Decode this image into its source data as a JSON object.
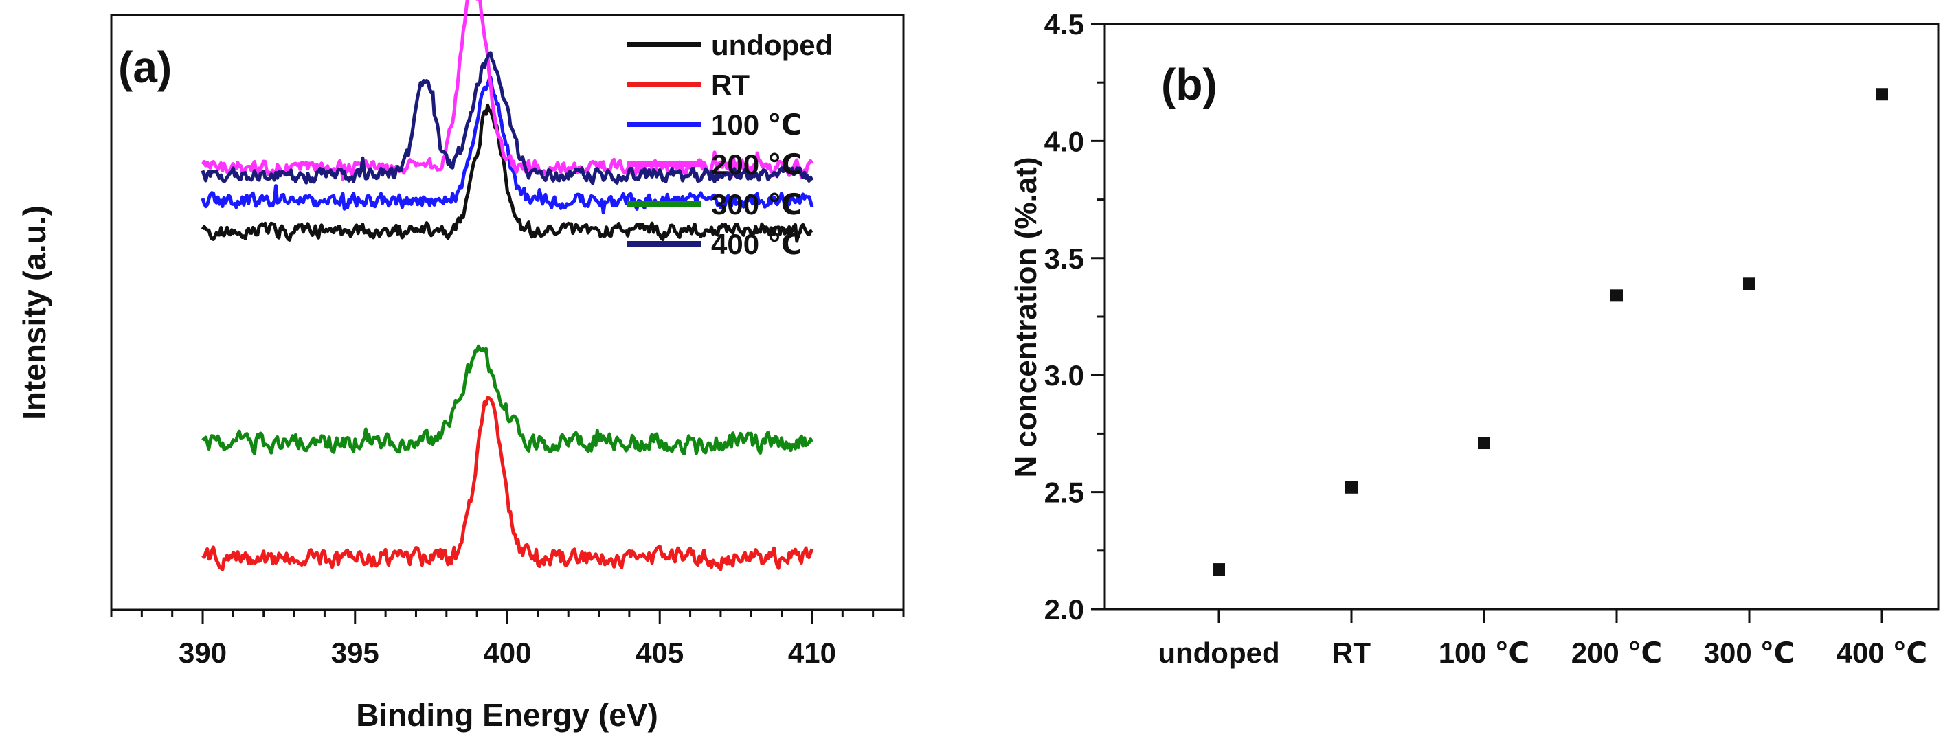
{
  "chart_data": [
    {
      "type": "line",
      "panel_label": "(a)",
      "xlabel": "Binding Energy (eV)",
      "ylabel": "Intensity (a.u.)",
      "xlim": [
        387,
        413
      ],
      "ylim": [
        0,
        8
      ],
      "xticks": [
        "390",
        "395",
        "400",
        "405",
        "410"
      ],
      "grid": false,
      "legend_position": "top-right",
      "peak_position": 399.3,
      "x_range": [
        390,
        410
      ],
      "series": [
        {
          "name": "undoped",
          "color": "#111111",
          "baseline": 5.1,
          "peak_height": 1.65,
          "peak_center": 399.4,
          "peak_width": 0.6,
          "noise": 0.08
        },
        {
          "name": "RT",
          "color": "#ee1c1c",
          "baseline": 0.7,
          "peak_height": 2.15,
          "peak_center": 399.4,
          "peak_width": 0.6,
          "noise": 0.1
        },
        {
          "name": "100 ℃",
          "color": "#1a1aff",
          "baseline": 5.5,
          "peak_height": 1.6,
          "peak_center": 399.4,
          "peak_width": 0.65,
          "noise": 0.08
        },
        {
          "name": "200 ℃",
          "color": "#ff33ff",
          "baseline": 5.95,
          "peak_height": 2.5,
          "peak_center": 398.9,
          "peak_width": 0.6,
          "noise": 0.08
        },
        {
          "name": "300 ℃",
          "color": "#118811",
          "baseline": 2.25,
          "peak_height": 1.2,
          "peak_center": 399.1,
          "peak_width": 0.85,
          "noise": 0.1
        },
        {
          "name": "400 ℃",
          "color": "#1b1b7a",
          "baseline": 5.85,
          "peak_height": 1.55,
          "peak_center": 399.4,
          "peak_width": 0.75,
          "second_peak_center": 397.3,
          "second_peak_height": 1.3,
          "second_peak_width": 0.45,
          "noise": 0.08
        }
      ]
    },
    {
      "type": "scatter",
      "panel_label": "(b)",
      "xlabel": "",
      "ylabel": "N concentration (%.at)",
      "categories": [
        "undoped",
        "RT",
        "100 ℃",
        "200 ℃",
        "300 ℃",
        "400 ℃"
      ],
      "values": [
        2.17,
        2.52,
        2.71,
        3.34,
        3.39,
        4.2
      ],
      "ylim": [
        2.0,
        4.5
      ],
      "yticks": [
        "2.0",
        "2.5",
        "3.0",
        "3.5",
        "4.0",
        "4.5"
      ],
      "grid": false,
      "marker": "square",
      "color": "#111111"
    }
  ]
}
